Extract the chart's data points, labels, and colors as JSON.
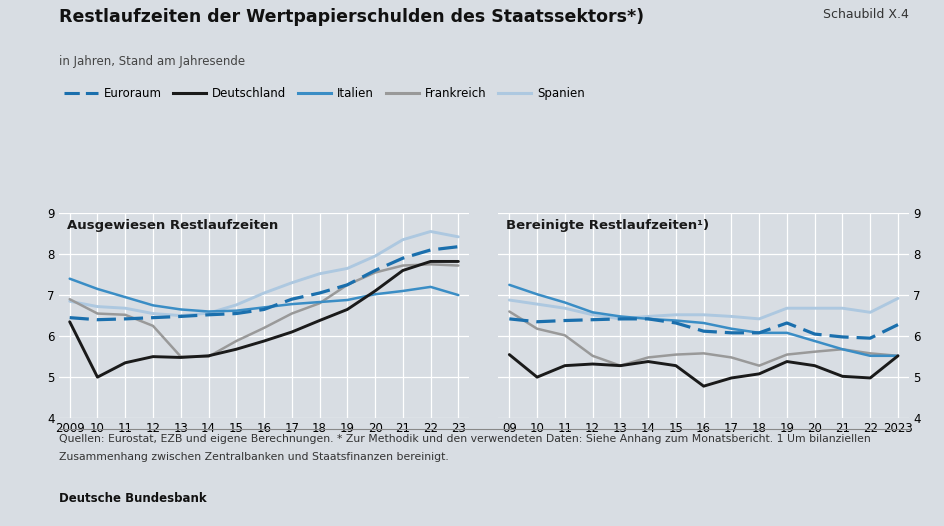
{
  "title": "Restlaufzeiten der Wertpapierschulden des Staatssektors*)",
  "schaubild": "Schaubild X.4",
  "subtitle": "in Jahren, Stand am Jahresende",
  "footnote1": "Quellen: Eurostat, EZB und eigene Berechnungen. * Zur Methodik und den verwendeten Daten: Siehe Anhang zum Monatsbericht. 1 Um bilanziellen",
  "footnote2": "Zusammenhang zwischen Zentralbanken und Staatsfinanzen bereinigt.",
  "source": "Deutsche Bundesbank",
  "panel1_title": "Ausgewiesen Restlaufzeiten",
  "panel2_title": "Bereinigte Restlaufzeiten¹)",
  "years_left": [
    2009,
    2010,
    2011,
    2012,
    2013,
    2014,
    2015,
    2016,
    2017,
    2018,
    2019,
    2020,
    2021,
    2022,
    2023
  ],
  "years_right": [
    2009,
    2010,
    2011,
    2012,
    2013,
    2014,
    2015,
    2016,
    2017,
    2018,
    2019,
    2020,
    2021,
    2022,
    2023
  ],
  "left_euroraum": [
    6.45,
    6.4,
    6.42,
    6.45,
    6.48,
    6.52,
    6.55,
    6.65,
    6.9,
    7.05,
    7.25,
    7.6,
    7.9,
    8.1,
    8.18
  ],
  "left_deutschland": [
    6.35,
    5.0,
    5.35,
    5.5,
    5.48,
    5.52,
    5.68,
    5.88,
    6.1,
    6.38,
    6.65,
    7.1,
    7.6,
    7.82,
    7.82
  ],
  "left_italien": [
    7.4,
    7.15,
    6.95,
    6.75,
    6.65,
    6.6,
    6.62,
    6.7,
    6.78,
    6.83,
    6.88,
    7.02,
    7.1,
    7.2,
    7.0
  ],
  "left_frankreich": [
    6.9,
    6.55,
    6.52,
    6.25,
    5.5,
    5.5,
    5.88,
    6.2,
    6.55,
    6.8,
    7.25,
    7.55,
    7.72,
    7.75,
    7.72
  ],
  "left_spanien": [
    6.85,
    6.72,
    6.68,
    6.55,
    6.5,
    6.56,
    6.76,
    7.05,
    7.3,
    7.52,
    7.65,
    7.95,
    8.35,
    8.55,
    8.42
  ],
  "right_euroraum": [
    6.42,
    6.35,
    6.38,
    6.4,
    6.42,
    6.42,
    6.32,
    6.12,
    6.08,
    6.08,
    6.32,
    6.05,
    5.98,
    5.95,
    6.28
  ],
  "right_deutschland": [
    5.55,
    5.0,
    5.28,
    5.32,
    5.28,
    5.38,
    5.28,
    4.78,
    4.98,
    5.08,
    5.38,
    5.28,
    5.02,
    4.98,
    5.52
  ],
  "right_italien": [
    7.25,
    7.02,
    6.82,
    6.58,
    6.48,
    6.42,
    6.38,
    6.32,
    6.18,
    6.08,
    6.08,
    5.88,
    5.68,
    5.52,
    5.52
  ],
  "right_frankreich": [
    6.6,
    6.18,
    6.02,
    5.52,
    5.28,
    5.48,
    5.55,
    5.58,
    5.48,
    5.28,
    5.55,
    5.62,
    5.68,
    5.58,
    5.52
  ],
  "right_spanien": [
    6.88,
    6.78,
    6.68,
    6.52,
    6.42,
    6.48,
    6.52,
    6.52,
    6.48,
    6.42,
    6.68,
    6.68,
    6.68,
    6.58,
    6.92
  ],
  "color_euroraum": "#1a6fad",
  "color_deutschland": "#1a1a1a",
  "color_italien": "#3a8dc5",
  "color_frankreich": "#999999",
  "color_spanien": "#adc8e0",
  "bg_color": "#d8dde3",
  "ylim": [
    4,
    9
  ],
  "yticks": [
    4,
    5,
    6,
    7,
    8,
    9
  ],
  "left_xtick_labels": [
    "2009",
    "10",
    "11",
    "12",
    "13",
    "14",
    "15",
    "16",
    "17",
    "18",
    "19",
    "20",
    "21",
    "22",
    "23"
  ],
  "right_xtick_labels": [
    "09",
    "10",
    "11",
    "12",
    "13",
    "14",
    "15",
    "16",
    "17",
    "18",
    "19",
    "20",
    "21",
    "22",
    "2023"
  ],
  "legend_labels": [
    "Euroraum",
    "Deutschland",
    "Italien",
    "Frankreich",
    "Spanien"
  ]
}
